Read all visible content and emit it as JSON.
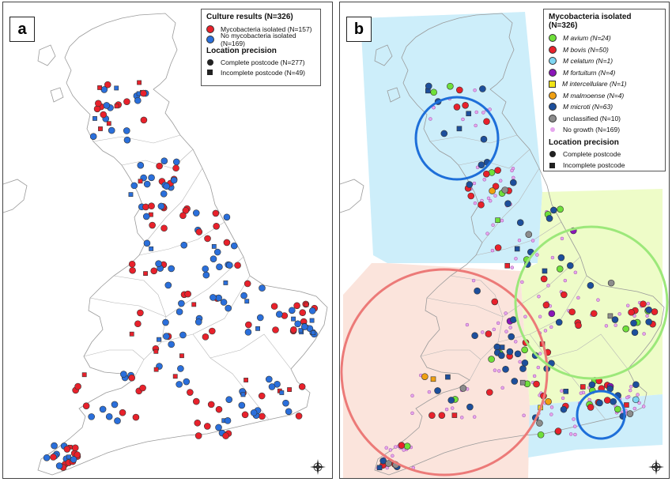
{
  "panel_a": {
    "label": "a",
    "legend": {
      "title": "Culture results (N=326)",
      "items": [
        {
          "label": "Mycobacteria isolated (N=157)",
          "color": "#e8212b",
          "shape": "circle"
        },
        {
          "label": "No mycobacteria isolated (N=169)",
          "color": "#2a6fdb",
          "shape": "circle"
        }
      ],
      "precision_title": "Location precision",
      "precision_items": [
        {
          "label": "Complete postcode (N=277)",
          "shape": "circle"
        },
        {
          "label": "Incomplete postcode (N=49)",
          "shape": "square"
        }
      ]
    }
  },
  "panel_b": {
    "label": "b",
    "legend": {
      "title": "Mycobacteria isolated (N=326)",
      "items": [
        {
          "species": "M avium",
          "count": "(N=24)",
          "color": "#6fe03a",
          "shape": "circle"
        },
        {
          "species": "M bovis",
          "count": "(N=50)",
          "color": "#e8212b",
          "shape": "circle"
        },
        {
          "species": "M celatum",
          "count": "(N=1)",
          "color": "#7fd6f2",
          "shape": "circle"
        },
        {
          "species": "M fortuitum",
          "count": "(N=4)",
          "color": "#8a16b8",
          "shape": "circle"
        },
        {
          "species": "M intercellulare",
          "count": "(N=1)",
          "color": "#f0e316",
          "shape": "square"
        },
        {
          "species": "M malmoense",
          "count": "(N=4)",
          "color": "#f0a012",
          "shape": "circle"
        },
        {
          "species": "M microti",
          "count": "(N=63)",
          "color": "#1d4f9c",
          "shape": "circle"
        },
        {
          "species": "unclassified",
          "count": "(N=10)",
          "color": "#8c8c8c",
          "shape": "circle"
        },
        {
          "species": "No growth",
          "count": "(N=169)",
          "color": "#e6a6ee",
          "shape": "dot"
        }
      ],
      "precision_title": "Location precision",
      "precision_items": [
        {
          "label": "Complete postcode",
          "shape": "circle"
        },
        {
          "label": "Incomplete postcode",
          "shape": "square"
        }
      ]
    },
    "regions": [
      {
        "name": "north",
        "color": "#cdeefa"
      },
      {
        "name": "east",
        "color": "#eefcc8"
      },
      {
        "name": "west",
        "color": "#fbe4dc"
      },
      {
        "name": "south-east",
        "color": "#cdeefa"
      }
    ],
    "cluster_colors": {
      "blue": "#1e6fd9",
      "green": "#9ce87a",
      "red": "#ec7a78"
    }
  },
  "compass": {
    "n": "N",
    "s": "S",
    "e": "E",
    "w": "W"
  }
}
